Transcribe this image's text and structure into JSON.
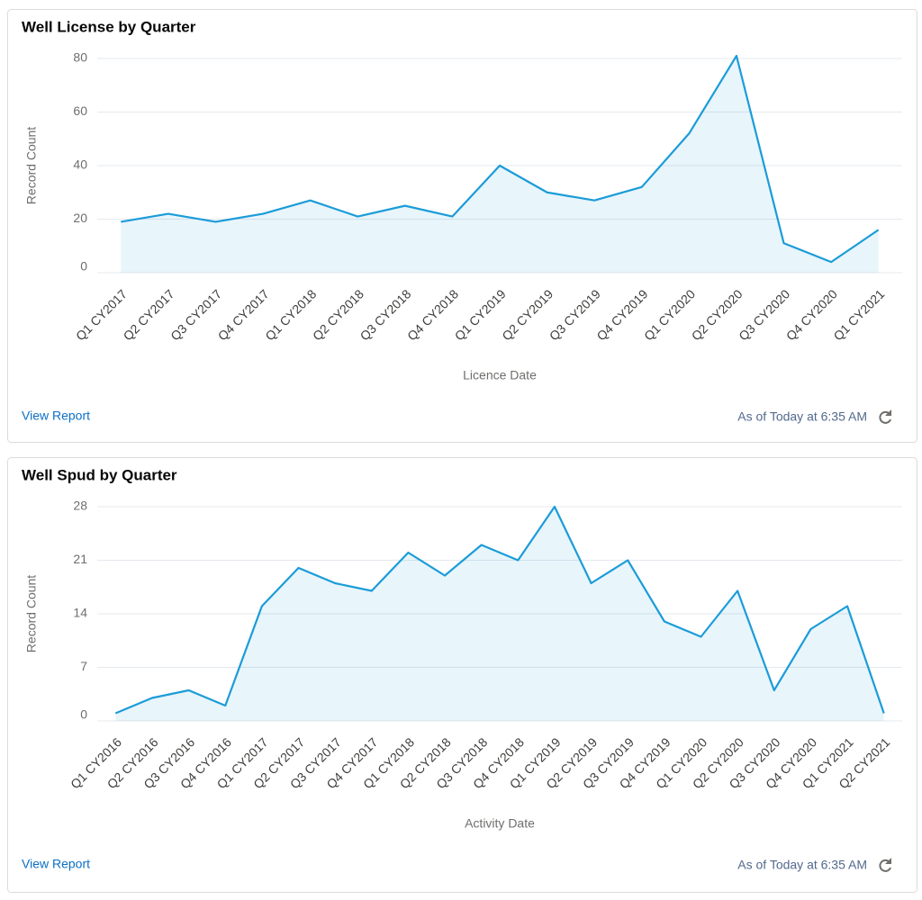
{
  "chart_data": [
    {
      "type": "area",
      "title": "Well License by Quarter",
      "x_label": "Licence Date",
      "y_label": "Record Count",
      "categories": [
        "Q1 CY2017",
        "Q2 CY2017",
        "Q3 CY2017",
        "Q4 CY2017",
        "Q1 CY2018",
        "Q2 CY2018",
        "Q3 CY2018",
        "Q4 CY2018",
        "Q1 CY2019",
        "Q2 CY2019",
        "Q3 CY2019",
        "Q4 CY2019",
        "Q1 CY2020",
        "Q2 CY2020",
        "Q3 CY2020",
        "Q4 CY2020",
        "Q1 CY2021"
      ],
      "values": [
        19,
        22,
        19,
        22,
        27,
        21,
        25,
        21,
        40,
        30,
        27,
        32,
        52,
        81,
        11,
        4,
        16
      ],
      "color": "#1b9cd8",
      "ylim": [
        0,
        80
      ],
      "yticks": [
        0,
        20,
        40,
        60,
        80
      ],
      "grid": true,
      "link": "View Report",
      "timestamp": "As of Today at 6:35 AM"
    },
    {
      "type": "area",
      "title": "Well Spud by Quarter",
      "x_label": "Activity Date",
      "y_label": "Record Count",
      "categories": [
        "Q1 CY2016",
        "Q2 CY2016",
        "Q3 CY2016",
        "Q4 CY2016",
        "Q1 CY2017",
        "Q2 CY2017",
        "Q3 CY2017",
        "Q4 CY2017",
        "Q1 CY2018",
        "Q2 CY2018",
        "Q3 CY2018",
        "Q4 CY2018",
        "Q1 CY2019",
        "Q2 CY2019",
        "Q3 CY2019",
        "Q4 CY2019",
        "Q1 CY2020",
        "Q2 CY2020",
        "Q3 CY2020",
        "Q4 CY2020",
        "Q1 CY2021",
        "Q2 CY2021"
      ],
      "values": [
        1,
        3,
        4,
        2,
        15,
        20,
        18,
        17,
        22,
        19,
        23,
        21,
        28,
        18,
        21,
        13,
        11,
        17,
        4,
        12,
        15,
        1
      ],
      "color": "#1b9cd8",
      "ylim": [
        0,
        28
      ],
      "yticks": [
        0,
        7,
        14,
        21,
        28
      ],
      "grid": true,
      "link": "View Report",
      "timestamp": "As of Today at 6:35 AM"
    }
  ]
}
